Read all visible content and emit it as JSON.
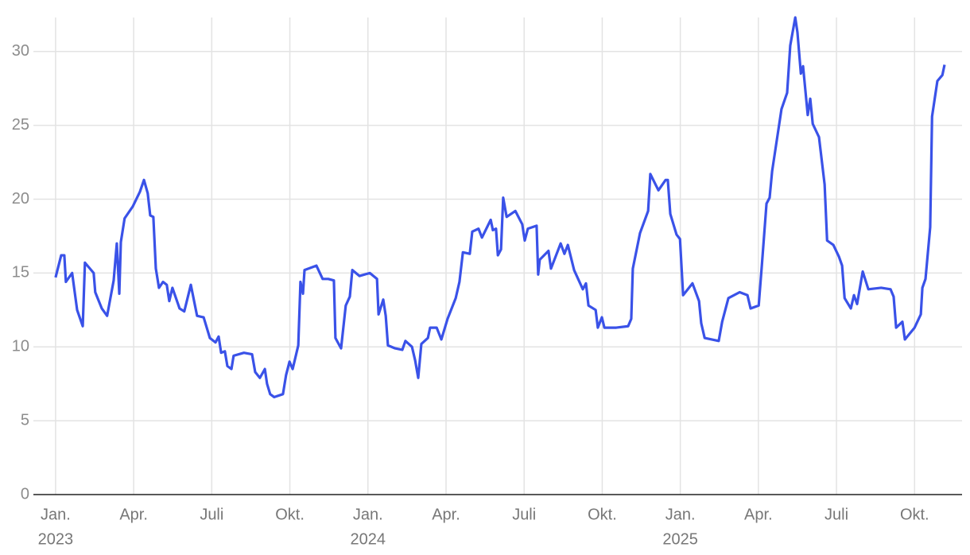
{
  "chart_data": {
    "type": "line",
    "x": [
      2023.0,
      2023.018,
      2023.028,
      2023.033,
      2023.053,
      2023.069,
      2023.087,
      2023.094,
      2023.122,
      2023.127,
      2023.148,
      2023.165,
      2023.186,
      2023.196,
      2023.204,
      2023.209,
      2023.221,
      2023.247,
      2023.27,
      2023.283,
      2023.295,
      2023.303,
      2023.313,
      2023.321,
      2023.331,
      2023.344,
      2023.356,
      2023.364,
      2023.374,
      2023.397,
      2023.412,
      2023.433,
      2023.453,
      2023.474,
      2023.494,
      2023.512,
      2023.522,
      2023.53,
      2023.542,
      2023.55,
      2023.563,
      2023.57,
      2023.603,
      2023.629,
      2023.639,
      2023.654,
      2023.67,
      2023.677,
      2023.687,
      2023.7,
      2023.728,
      2023.738,
      2023.749,
      2023.759,
      2023.777,
      2023.784,
      2023.792,
      2023.797,
      2023.835,
      2023.855,
      2023.873,
      2023.891,
      2023.896,
      2023.914,
      2023.929,
      2023.942,
      2023.95,
      2023.973,
      2024.006,
      2024.029,
      2024.034,
      2024.049,
      2024.057,
      2024.064,
      2024.087,
      2024.11,
      2024.12,
      2024.141,
      2024.151,
      2024.161,
      2024.171,
      2024.192,
      2024.199,
      2024.22,
      2024.235,
      2024.255,
      2024.281,
      2024.293,
      2024.304,
      2024.326,
      2024.334,
      2024.354,
      2024.365,
      2024.393,
      2024.4,
      2024.41,
      2024.416,
      2024.426,
      2024.433,
      2024.444,
      2024.472,
      2024.494,
      2024.502,
      2024.512,
      2024.54,
      2024.545,
      2024.55,
      2024.578,
      2024.586,
      2024.617,
      2024.629,
      2024.64,
      2024.66,
      2024.688,
      2024.698,
      2024.706,
      2024.729,
      2024.736,
      2024.749,
      2024.757,
      2024.795,
      2024.833,
      2024.843,
      2024.848,
      2024.871,
      2024.897,
      2024.904,
      2024.93,
      2024.953,
      2024.96,
      2024.968,
      2024.988,
      2024.999,
      2025.009,
      2025.039,
      2025.06,
      2025.067,
      2025.078,
      2025.123,
      2025.134,
      2025.154,
      2025.19,
      2025.215,
      2025.225,
      2025.251,
      2025.261,
      2025.276,
      2025.286,
      2025.294,
      2025.309,
      2025.324,
      2025.342,
      2025.352,
      2025.368,
      2025.375,
      2025.386,
      2025.393,
      2025.408,
      2025.416,
      2025.424,
      2025.444,
      2025.462,
      2025.47,
      2025.49,
      2025.508,
      2025.518,
      2025.526,
      2025.546,
      2025.556,
      2025.566,
      2025.584,
      2025.602,
      2025.643,
      2025.673,
      2025.683,
      2025.691,
      2025.711,
      2025.719,
      2025.75,
      2025.77,
      2025.775,
      2025.785,
      2025.8,
      2025.806,
      2025.823,
      2025.839,
      2025.846
    ],
    "series": [
      {
        "color": "#3a52e8",
        "values": [
          14.7,
          16.2,
          16.2,
          14.4,
          15,
          12.5,
          11.4,
          15.7,
          15,
          13.7,
          12.6,
          12.1,
          14.5,
          17,
          13.6,
          17.1,
          18.7,
          19.5,
          20.5,
          21.3,
          20.4,
          18.9,
          18.8,
          15.3,
          14,
          14.4,
          14.2,
          13.1,
          14,
          12.6,
          12.4,
          14.2,
          12.1,
          12,
          10.6,
          10.3,
          10.7,
          9.6,
          9.7,
          8.7,
          8.5,
          9.4,
          9.6,
          9.5,
          8.3,
          7.9,
          8.5,
          7.5,
          6.8,
          6.6,
          6.8,
          8.1,
          9,
          8.5,
          10.1,
          14.4,
          13.6,
          15.2,
          15.5,
          14.6,
          14.6,
          14.5,
          10.6,
          9.9,
          12.8,
          13.4,
          15.2,
          14.8,
          15,
          14.6,
          12.2,
          13.2,
          12.1,
          10.1,
          9.9,
          9.8,
          10.4,
          10,
          9.1,
          7.9,
          10.2,
          10.6,
          11.3,
          11.3,
          10.5,
          11.9,
          13.3,
          14.4,
          16.4,
          16.3,
          17.8,
          18,
          17.4,
          18.6,
          17.9,
          18,
          16.2,
          16.6,
          20.1,
          18.8,
          19.2,
          18.3,
          17.2,
          18,
          18.2,
          14.9,
          15.9,
          16.5,
          15.3,
          17,
          16.3,
          16.9,
          15.2,
          13.9,
          14.3,
          12.8,
          12.5,
          11.3,
          12,
          11.3,
          11.3,
          11.4,
          11.9,
          15.3,
          17.7,
          19.2,
          21.7,
          20.6,
          21.3,
          21.3,
          19,
          17.6,
          17.3,
          13.5,
          14.3,
          13.1,
          11.6,
          10.6,
          10.4,
          11.7,
          13.3,
          13.7,
          13.5,
          12.6,
          12.8,
          15.5,
          19.7,
          20.1,
          21.9,
          24,
          26.1,
          27.2,
          30.4,
          32.3,
          31.3,
          28.5,
          29,
          25.7,
          26.8,
          25.1,
          24.2,
          21,
          17.2,
          16.9,
          16.1,
          15.5,
          13.3,
          12.6,
          13.5,
          12.9,
          15.1,
          13.9,
          14,
          13.9,
          13.4,
          11.3,
          11.7,
          10.5,
          11.3,
          12.2,
          14,
          14.6,
          18.1,
          25.6,
          28,
          28.4,
          29.1
        ]
      }
    ],
    "xlim": [
      2022.929,
      2025.902
    ],
    "xticks": [
      {
        "value": 2023,
        "label": "Jan."
      },
      {
        "value": 2023.25,
        "label": "Apr."
      },
      {
        "value": 2023.5,
        "label": "Juli"
      },
      {
        "value": 2023.75,
        "label": "Okt."
      },
      {
        "value": 2024,
        "label": "Jan."
      },
      {
        "value": 2024.25,
        "label": "Apr."
      },
      {
        "value": 2024.5,
        "label": "Juli"
      },
      {
        "value": 2024.75,
        "label": "Okt."
      },
      {
        "value": 2025,
        "label": "Jan."
      },
      {
        "value": 2025.25,
        "label": "Apr."
      },
      {
        "value": 2025.5,
        "label": "Juli"
      },
      {
        "value": 2025.75,
        "label": "Okt."
      }
    ],
    "xtick_years": [
      2023,
      2024,
      2025
    ],
    "ylim": [
      0,
      32.3
    ],
    "yticks": [
      0,
      5,
      10,
      15,
      20,
      25,
      30
    ],
    "grid": true
  }
}
